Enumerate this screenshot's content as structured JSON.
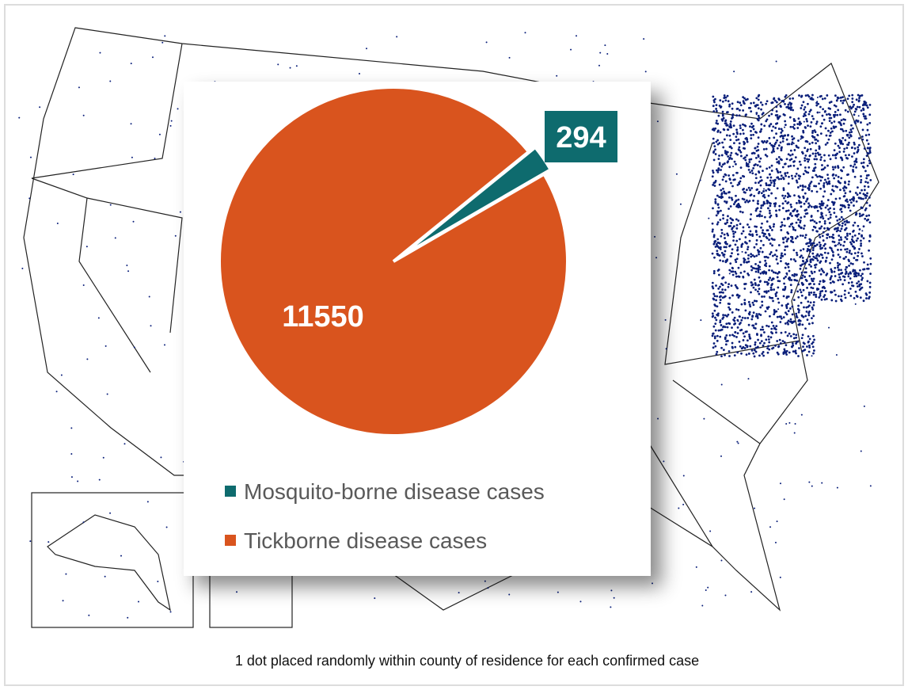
{
  "chart_data": {
    "type": "pie",
    "categories": [
      "Mosquito-borne disease cases",
      "Tickborne disease cases"
    ],
    "values": [
      294,
      11550
    ],
    "colors": [
      "#0e6b6e",
      "#d9541e"
    ],
    "caption": "1 dot placed randomly within county of residence for each confirmed case"
  }
}
